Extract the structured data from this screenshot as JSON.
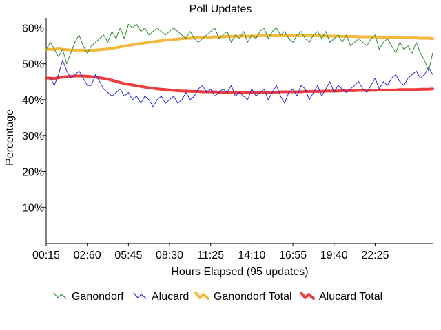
{
  "chart_data": {
    "type": "line",
    "title": "Poll Updates",
    "xlabel": "Hours Elapsed (95 updates)",
    "ylabel": "Percentage",
    "ylim": [
      0,
      62
    ],
    "y_ticks": [
      10,
      20,
      30,
      40,
      50,
      60
    ],
    "y_tick_labels": [
      "10%",
      "20%",
      "30%",
      "40%",
      "50%",
      "60%"
    ],
    "x_ticks": [
      0,
      10,
      20,
      30,
      40,
      50,
      60,
      70,
      80
    ],
    "x_tick_labels": [
      "00:15",
      "02:60",
      "05:45",
      "08:30",
      "11:25",
      "14:10",
      "16:55",
      "19:40",
      "22:25"
    ],
    "xlim": [
      0,
      94
    ],
    "legend_position": "bottom",
    "colors": {
      "ganondorf": "#2e8b2e",
      "alucard": "#2a2ad6",
      "ganondorf_total": "#f4b93c",
      "alucard_total": "#ee3b3b",
      "axis": "#000000"
    },
    "series": [
      {
        "name": "Ganondorf",
        "style": "thin",
        "values": [
          54,
          56,
          54,
          52,
          54,
          50,
          53,
          56,
          58,
          55,
          53,
          55,
          56,
          57,
          58,
          56,
          59,
          57,
          60,
          57,
          61,
          60,
          61,
          59,
          60,
          58,
          59,
          60,
          59,
          58,
          59,
          60,
          59,
          58,
          57,
          59,
          57,
          56,
          57,
          58,
          59,
          60,
          57,
          58,
          59,
          56,
          58,
          57,
          59,
          56,
          58,
          57,
          59,
          60,
          57,
          59,
          60,
          58,
          59,
          57,
          56,
          58,
          59,
          57,
          56,
          58,
          59,
          57,
          59,
          56,
          57,
          58,
          56,
          58,
          55,
          56,
          57,
          56,
          55,
          57,
          58,
          54,
          56,
          57,
          55,
          53,
          56,
          54,
          55,
          53,
          56,
          53,
          51,
          48,
          53
        ]
      },
      {
        "name": "Alucard",
        "style": "thin",
        "values": [
          46,
          46,
          44,
          47,
          51,
          48,
          46,
          47,
          48,
          46,
          44,
          44,
          47,
          45,
          43,
          42,
          41,
          42,
          43,
          41,
          42,
          40,
          41,
          39,
          41,
          40,
          38,
          40,
          41,
          39,
          40,
          41,
          39,
          40,
          42,
          40,
          41,
          43,
          44,
          42,
          43,
          41,
          42,
          43,
          42,
          44,
          41,
          42,
          41,
          40,
          43,
          41,
          42,
          43,
          40,
          42,
          44,
          41,
          39,
          42,
          43,
          41,
          44,
          43,
          40,
          42,
          44,
          41,
          43,
          45,
          42,
          44,
          43,
          42,
          43,
          44,
          45,
          43,
          42,
          44,
          46,
          43,
          45,
          44,
          46,
          47,
          45,
          44,
          46,
          47,
          48,
          46,
          47,
          49,
          47
        ]
      },
      {
        "name": "Ganondorf Total",
        "style": "thick",
        "values": [
          54,
          54,
          54,
          54.2,
          54,
          53.9,
          53.8,
          53.8,
          53.8,
          53.8,
          53.7,
          53.8,
          53.8,
          53.9,
          54,
          54.1,
          54.3,
          54.5,
          54.7,
          54.9,
          55.1,
          55.3,
          55.5,
          55.6,
          55.8,
          56,
          56.1,
          56.3,
          56.4,
          56.6,
          56.7,
          56.8,
          56.9,
          57,
          57.1,
          57.1,
          57.2,
          57.3,
          57.3,
          57.4,
          57.4,
          57.5,
          57.5,
          57.5,
          57.6,
          57.6,
          57.6,
          57.7,
          57.7,
          57.7,
          57.7,
          57.7,
          57.8,
          57.8,
          57.8,
          57.8,
          57.8,
          57.8,
          57.8,
          57.8,
          57.8,
          57.8,
          57.8,
          57.8,
          57.8,
          57.8,
          57.8,
          57.8,
          57.7,
          57.7,
          57.7,
          57.7,
          57.6,
          57.6,
          57.6,
          57.6,
          57.5,
          57.5,
          57.5,
          57.5,
          57.4,
          57.4,
          57.4,
          57.4,
          57.3,
          57.3,
          57.3,
          57.2,
          57.2,
          57.2,
          57.2,
          57.1,
          57.1,
          57.1,
          57
        ]
      },
      {
        "name": "Alucard Total",
        "style": "thick",
        "values": [
          46,
          46,
          45.9,
          46.1,
          46.3,
          46.4,
          46.5,
          46.6,
          46.6,
          46.6,
          46.5,
          46.4,
          46.3,
          46.1,
          45.9,
          45.7,
          45.4,
          45.1,
          44.8,
          44.5,
          44.3,
          44.1,
          43.9,
          43.7,
          43.5,
          43.3,
          43.2,
          43,
          42.9,
          42.8,
          42.7,
          42.6,
          42.5,
          42.4,
          42.4,
          42.3,
          42.3,
          42.3,
          42.2,
          42.2,
          42.2,
          42.2,
          42.1,
          42.1,
          42.1,
          42.1,
          42.1,
          42.1,
          42.1,
          42.1,
          42.1,
          42.1,
          42.1,
          42.1,
          42.1,
          42.1,
          42.1,
          42.2,
          42.2,
          42.2,
          42.2,
          42.2,
          42.2,
          42.3,
          42.3,
          42.3,
          42.3,
          42.3,
          42.4,
          42.4,
          42.4,
          42.4,
          42.5,
          42.5,
          42.5,
          42.5,
          42.6,
          42.6,
          42.6,
          42.6,
          42.6,
          42.7,
          42.7,
          42.7,
          42.7,
          42.7,
          42.8,
          42.8,
          42.8,
          42.8,
          42.8,
          42.9,
          42.9,
          42.9,
          43
        ]
      }
    ]
  }
}
